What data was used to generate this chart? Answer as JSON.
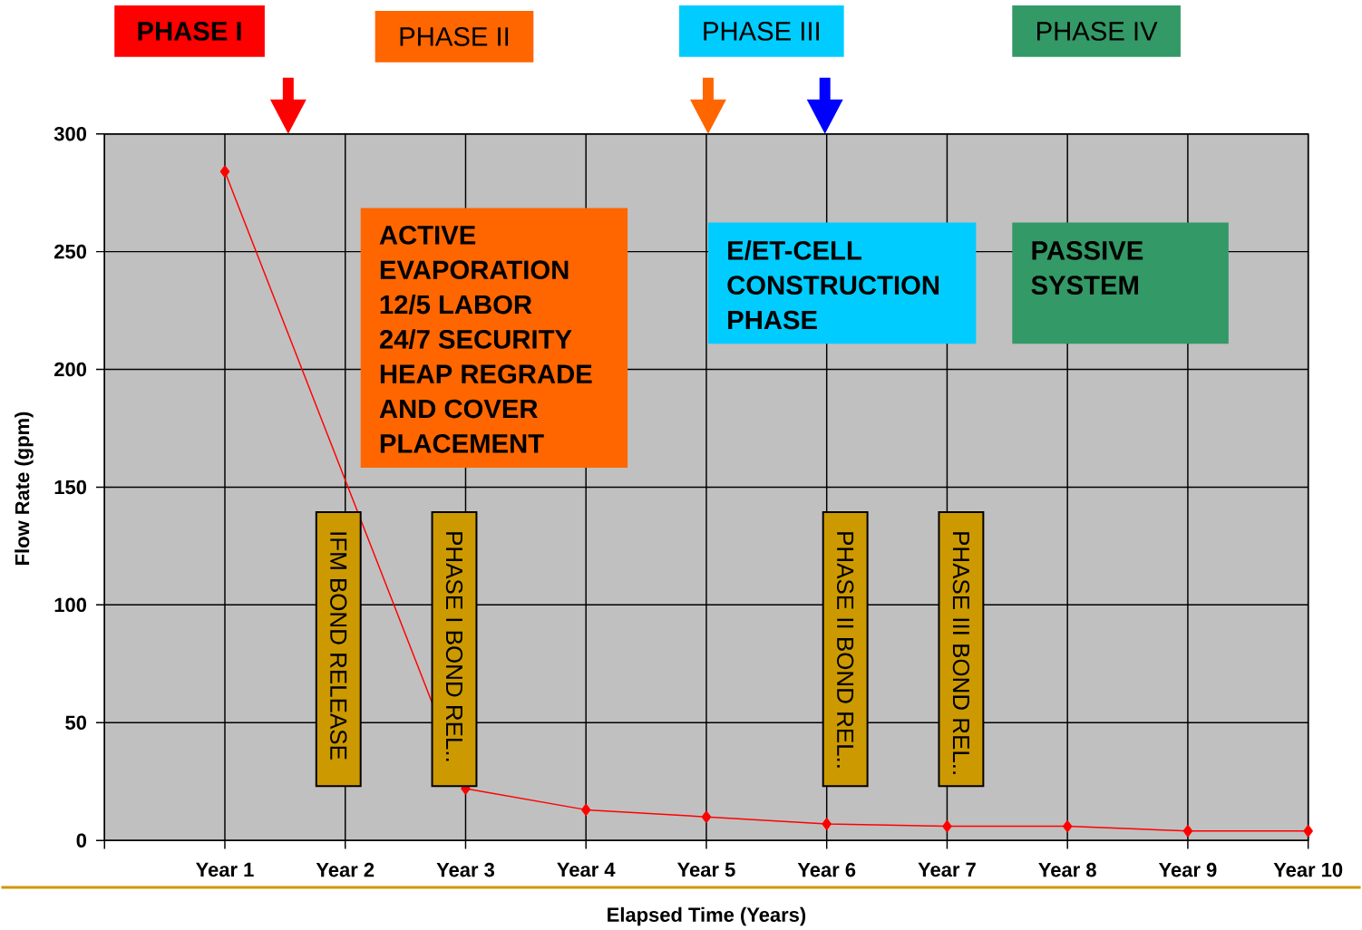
{
  "chart_data": {
    "type": "line",
    "xlabel": "Elapsed Time (Years)",
    "ylabel": "Flow Rate (gpm)",
    "categories": [
      "Year 1",
      "Year 2",
      "Year 3",
      "Year 4",
      "Year 5",
      "Year 6",
      "Year 7",
      "Year 8",
      "Year 9",
      "Year 10"
    ],
    "marker": "diamond",
    "ylim": [
      0,
      300
    ],
    "yticks": [
      0,
      50,
      100,
      150,
      200,
      250,
      300
    ],
    "grid": true,
    "series": [
      {
        "color": "#ff0000",
        "values": [
          284,
          null,
          22,
          13,
          10,
          7,
          6,
          6,
          4,
          4
        ]
      }
    ],
    "annotations": [
      "PHASE I",
      "PHASE II",
      "PHASE III",
      "PHASE IV",
      "ACTIVE",
      "EVAPORATION",
      "12/5 LABOR",
      "24/7 SECURITY",
      "HEAP REGRADE",
      "AND COVER",
      "PLACEMENT",
      "E/ET-CELL",
      "CONSTRUCTION",
      "PHASE",
      "PASSIVE",
      "SYSTEM",
      "IFM BOND RELEASE",
      "PHASE I BOND REL..",
      "PHASE II BOND REL..",
      "PHASE III BOND REL.."
    ]
  }
}
